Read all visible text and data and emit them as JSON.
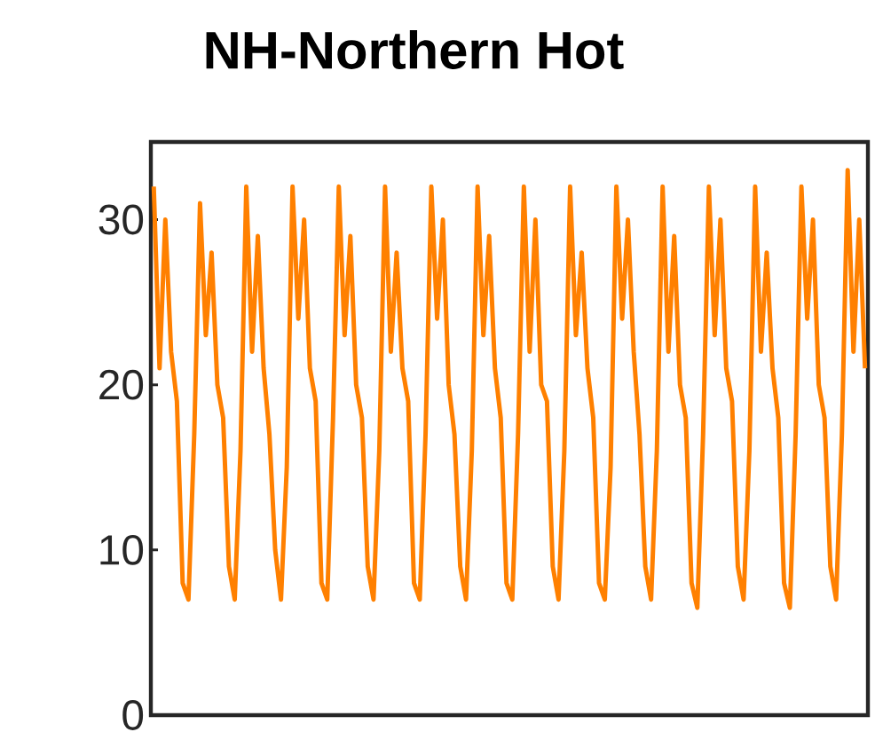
{
  "chart_data": {
    "type": "line",
    "title": "NH-Northern Hot",
    "categories": [
      null,
      null,
      null,
      null,
      null,
      null,
      null,
      null,
      null,
      null,
      null,
      null,
      null,
      null,
      null,
      null,
      null,
      null,
      null,
      null,
      null,
      null,
      null,
      null,
      null,
      null,
      null,
      null,
      null,
      null,
      null,
      null,
      null,
      null,
      null,
      null,
      null,
      null,
      null,
      null,
      null,
      null,
      null,
      null,
      null,
      null,
      null,
      null,
      null,
      null,
      null,
      null,
      null,
      null,
      null,
      null,
      null,
      null,
      null,
      null,
      null,
      null,
      null,
      null,
      null,
      null,
      null,
      null,
      null,
      null,
      null,
      null,
      null,
      null,
      null,
      null,
      null,
      null,
      null,
      null,
      null,
      null,
      null,
      null,
      null,
      null,
      null,
      null,
      null,
      null,
      null,
      null,
      null,
      null,
      null,
      null,
      null,
      null,
      null,
      null,
      null,
      null,
      null,
      null,
      null,
      null,
      null,
      null,
      null,
      null,
      null,
      null,
      null,
      null,
      null,
      null,
      null,
      null,
      null,
      null,
      null,
      null,
      null,
      null
    ],
    "series": [
      {
        "color": "#ff8000",
        "values": [
          32,
          21,
          30,
          22,
          19,
          8,
          7,
          17,
          31,
          23,
          28,
          20,
          18,
          9,
          7,
          16,
          32,
          22,
          29,
          21,
          17,
          10,
          7,
          15,
          32,
          24,
          30,
          21,
          19,
          8,
          7,
          18,
          32,
          23,
          29,
          20,
          18,
          9,
          7,
          16,
          32,
          22,
          28,
          21,
          19,
          8,
          7,
          17,
          32,
          24,
          30,
          20,
          17,
          9,
          7,
          16,
          32,
          23,
          29,
          21,
          18,
          8,
          7,
          17,
          32,
          22,
          30,
          20,
          19,
          9,
          7,
          16,
          32,
          23,
          28,
          21,
          18,
          8,
          7,
          15,
          32,
          24,
          30,
          22,
          17,
          9,
          7,
          16,
          32,
          22,
          29,
          20,
          18,
          8,
          6.5,
          17,
          32,
          23,
          30,
          21,
          19,
          9,
          7,
          16,
          32,
          22,
          28,
          21,
          18,
          8,
          6.5,
          17,
          32,
          24,
          30,
          20,
          18,
          9,
          7,
          17,
          33,
          22,
          30,
          21
        ]
      }
    ],
    "ylim": [
      0,
      34.7
    ],
    "yticks": [
      0,
      10,
      20,
      30
    ],
    "tick_labels": "y",
    "grid": false,
    "marker": "none",
    "line_style": "solid"
  }
}
